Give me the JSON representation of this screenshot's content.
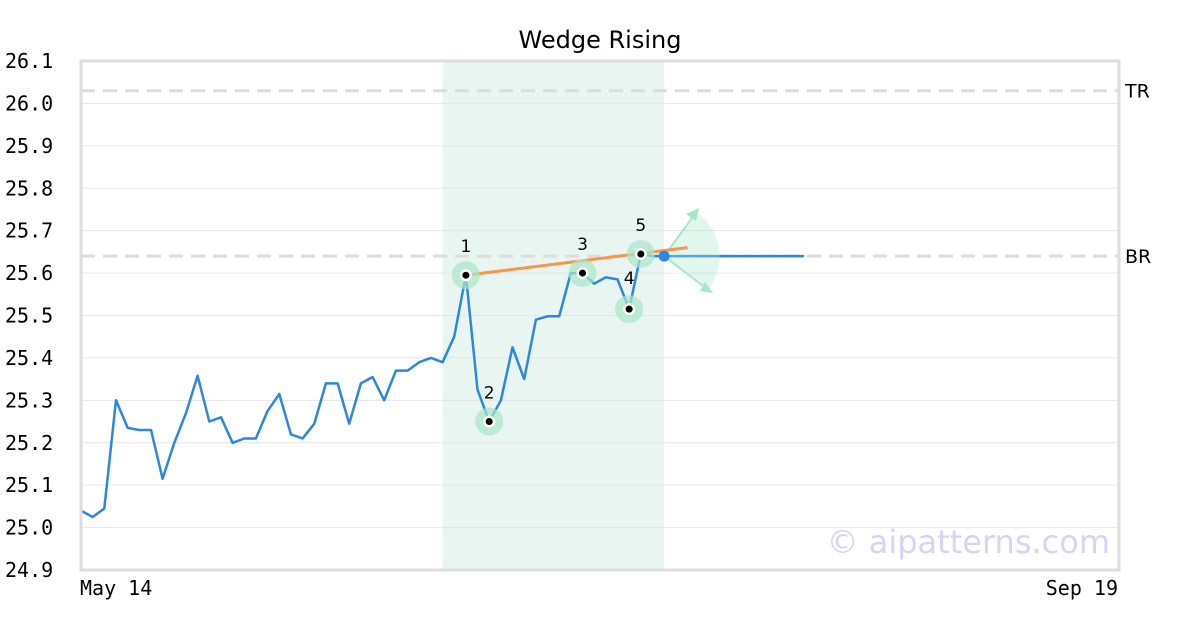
{
  "chart_data": {
    "type": "line",
    "title": "Wedge Rising",
    "xlabel": "",
    "ylabel": "",
    "ylim": [
      24.9,
      26.1
    ],
    "y_ticks": [
      "24.9",
      "25.0",
      "25.1",
      "25.2",
      "25.3",
      "25.4",
      "25.5",
      "25.6",
      "25.7",
      "25.8",
      "25.9",
      "26.0",
      "26.1"
    ],
    "x_tick_labels": [
      "May 14",
      "Sep 19"
    ],
    "grid": true,
    "x_count": 90,
    "series": [
      {
        "color": "#2e86de",
        "x": [
          0,
          1,
          2,
          3,
          4,
          5,
          6,
          7,
          8,
          9,
          10,
          11,
          12,
          13,
          14,
          15,
          16,
          17,
          18,
          19,
          20,
          21,
          22,
          23,
          24,
          25,
          26,
          27,
          28,
          29,
          30,
          31,
          32,
          33,
          34,
          35,
          36,
          37,
          38,
          39,
          40,
          41,
          42,
          43,
          44,
          45,
          46,
          47,
          48,
          49,
          50,
          51,
          52,
          53,
          54,
          55,
          56,
          57,
          58,
          59,
          60,
          61,
          62
        ],
        "values": [
          25.04,
          25.025,
          25.045,
          25.3,
          25.235,
          25.23,
          25.23,
          25.115,
          25.2,
          25.27,
          25.358,
          25.25,
          25.26,
          25.2,
          25.21,
          25.21,
          25.275,
          25.315,
          25.22,
          25.21,
          25.245,
          25.34,
          25.34,
          25.245,
          25.34,
          25.355,
          25.3,
          25.37,
          25.37,
          25.39,
          25.4,
          25.39,
          25.45,
          25.595,
          25.325,
          25.25,
          25.3,
          25.425,
          25.35,
          25.49,
          25.498,
          25.498,
          25.6,
          25.6,
          25.575,
          25.59,
          25.585,
          25.515,
          25.645,
          25.64,
          25.64,
          25.64,
          25.64,
          25.64,
          25.64,
          25.64,
          25.64,
          25.64,
          25.64,
          25.64,
          25.64,
          25.64,
          25.64
        ]
      }
    ],
    "pattern_points": [
      {
        "label": "1",
        "x": 33,
        "y": 25.595
      },
      {
        "label": "2",
        "x": 35,
        "y": 25.25
      },
      {
        "label": "3",
        "x": 43,
        "y": 25.6
      },
      {
        "label": "4",
        "x": 47,
        "y": 25.515
      },
      {
        "label": "5",
        "x": 48,
        "y": 25.645
      }
    ],
    "trend_line": {
      "color": "#f7964a",
      "x": [
        33,
        52
      ],
      "y": [
        25.595,
        25.66
      ]
    },
    "last_point": {
      "x": 50,
      "y": 25.64,
      "color": "#2e86de"
    },
    "highlight_range": {
      "x_start": 31,
      "x_end": 50,
      "color": "#e8f5f0"
    },
    "reference_lines": [
      {
        "label": "TR",
        "y": 26.03
      },
      {
        "label": "BR",
        "y": 25.64
      }
    ],
    "marker_color": "#a9e5c9",
    "watermark": "© aipatterns.com"
  }
}
